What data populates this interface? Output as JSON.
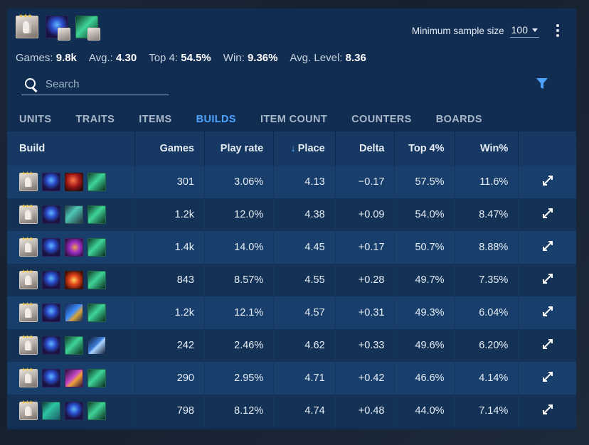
{
  "header": {
    "icons": [
      "unit-portrait",
      "item-orb",
      "item-green"
    ],
    "stars": "★★★",
    "min_sample_label": "Minimum sample size",
    "min_sample_value": "100"
  },
  "stats": [
    {
      "label": "Games:",
      "value": "9.8k"
    },
    {
      "label": "Avg.:",
      "value": "4.30"
    },
    {
      "label": "Top 4:",
      "value": "54.5%"
    },
    {
      "label": "Win:",
      "value": "9.36%"
    },
    {
      "label": "Avg. Level:",
      "value": "8.36"
    }
  ],
  "search": {
    "placeholder": "Search",
    "value": ""
  },
  "tabs": [
    {
      "label": "UNITS",
      "active": false
    },
    {
      "label": "TRAITS",
      "active": false
    },
    {
      "label": "ITEMS",
      "active": false
    },
    {
      "label": "BUILDS",
      "active": true
    },
    {
      "label": "ITEM COUNT",
      "active": false
    },
    {
      "label": "COUNTERS",
      "active": false
    },
    {
      "label": "BOARDS",
      "active": false
    }
  ],
  "table": {
    "headers": {
      "build": "Build",
      "games": "Games",
      "play_rate": "Play rate",
      "place": "Place",
      "delta": "Delta",
      "top4": "Top 4%",
      "win": "Win%"
    },
    "sort_arrow": "↓",
    "rows": [
      {
        "items": [
          "orb",
          "red",
          "green"
        ],
        "games": "301",
        "play_rate": "3.06%",
        "place": "4.13",
        "delta": "−0.17",
        "top4": "57.5%",
        "win": "11.6%"
      },
      {
        "items": [
          "orb",
          "teal",
          "green"
        ],
        "games": "1.2k",
        "play_rate": "12.0%",
        "place": "4.38",
        "delta": "+0.09",
        "top4": "54.0%",
        "win": "8.47%"
      },
      {
        "items": [
          "orb",
          "purple",
          "green"
        ],
        "games": "1.4k",
        "play_rate": "14.0%",
        "place": "4.45",
        "delta": "+0.17",
        "top4": "50.7%",
        "win": "8.88%"
      },
      {
        "items": [
          "orb",
          "fire",
          "green"
        ],
        "games": "843",
        "play_rate": "8.57%",
        "place": "4.55",
        "delta": "+0.28",
        "top4": "49.7%",
        "win": "7.35%"
      },
      {
        "items": [
          "orb",
          "blue",
          "green"
        ],
        "games": "1.2k",
        "play_rate": "12.1%",
        "place": "4.57",
        "delta": "+0.31",
        "top4": "49.3%",
        "win": "6.04%"
      },
      {
        "items": [
          "orb",
          "green",
          "wave"
        ],
        "games": "242",
        "play_rate": "2.46%",
        "place": "4.62",
        "delta": "+0.33",
        "top4": "49.6%",
        "win": "6.20%"
      },
      {
        "items": [
          "orb",
          "wand",
          "green"
        ],
        "games": "290",
        "play_rate": "2.95%",
        "place": "4.71",
        "delta": "+0.42",
        "top4": "46.6%",
        "win": "4.14%"
      },
      {
        "items": [
          "serpent",
          "orb",
          "green"
        ],
        "games": "798",
        "play_rate": "8.12%",
        "place": "4.74",
        "delta": "+0.48",
        "top4": "44.0%",
        "win": "7.14%"
      }
    ]
  }
}
